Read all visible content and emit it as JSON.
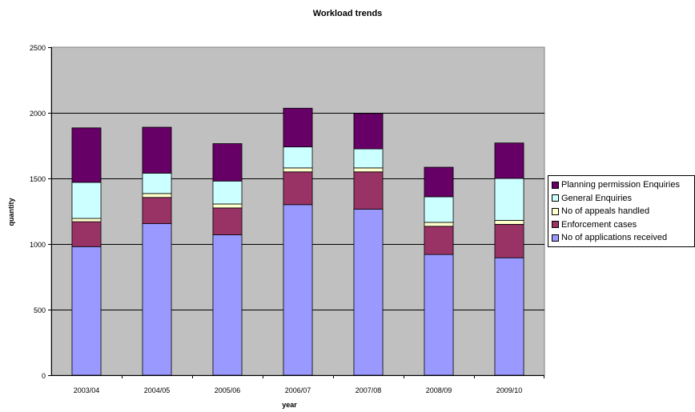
{
  "chart_data": {
    "type": "bar",
    "stacked": true,
    "title": "Workload trends",
    "xlabel": "year",
    "ylabel": "quantity",
    "ylim": [
      0,
      2500
    ],
    "yticks": [
      0,
      500,
      1000,
      1500,
      2000,
      2500
    ],
    "grid": true,
    "legend_position": "right",
    "plot_background": "#c0c0c0",
    "categories": [
      "2003/04",
      "2004/05",
      "2005/06",
      "2006/07",
      "2007/08",
      "2008/09",
      "2009/10"
    ],
    "series": [
      {
        "name": "No of applications received",
        "color": "#9999ff",
        "values": [
          980,
          1155,
          1070,
          1300,
          1265,
          920,
          895
        ]
      },
      {
        "name": "Enforcement cases",
        "color": "#993366",
        "values": [
          190,
          200,
          205,
          250,
          285,
          215,
          255
        ]
      },
      {
        "name": "No of appeals handled",
        "color": "#ffffcc",
        "values": [
          25,
          30,
          30,
          30,
          30,
          30,
          30
        ]
      },
      {
        "name": "General Enquiries",
        "color": "#ccffff",
        "values": [
          275,
          155,
          175,
          160,
          145,
          195,
          320
        ]
      },
      {
        "name": "Planning permission Enquiries",
        "color": "#660066",
        "values": [
          415,
          350,
          285,
          295,
          270,
          225,
          270
        ]
      }
    ]
  }
}
